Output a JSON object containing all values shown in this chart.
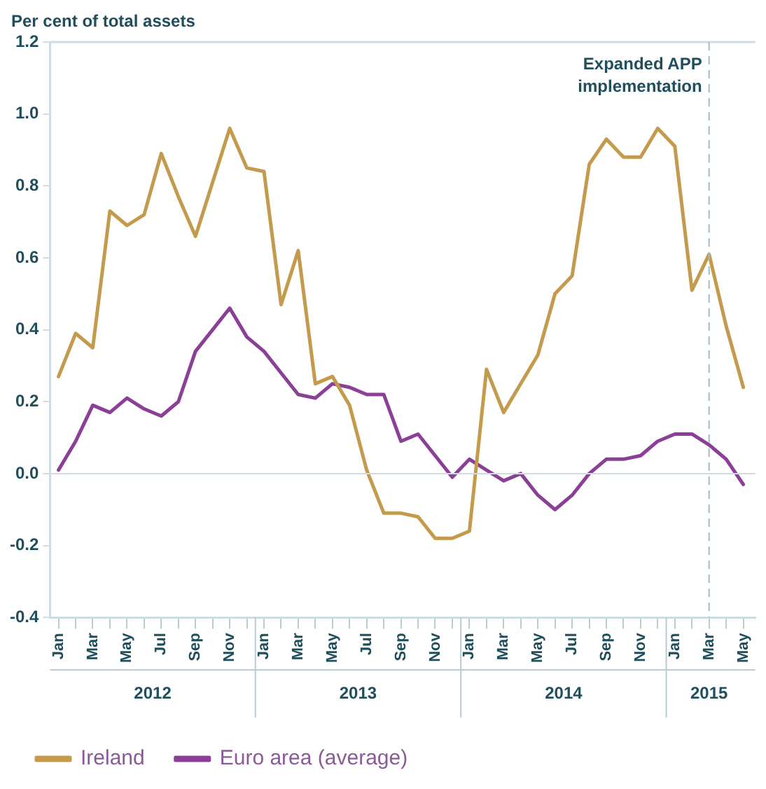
{
  "chart_data": {
    "type": "line",
    "ylabel": "Per cent of total assets",
    "x": [
      "2012-01",
      "2012-02",
      "2012-03",
      "2012-04",
      "2012-05",
      "2012-06",
      "2012-07",
      "2012-08",
      "2012-09",
      "2012-10",
      "2012-11",
      "2012-12",
      "2013-01",
      "2013-02",
      "2013-03",
      "2013-04",
      "2013-05",
      "2013-06",
      "2013-07",
      "2013-08",
      "2013-09",
      "2013-10",
      "2013-11",
      "2013-12",
      "2014-01",
      "2014-02",
      "2014-03",
      "2014-04",
      "2014-05",
      "2014-06",
      "2014-07",
      "2014-08",
      "2014-09",
      "2014-10",
      "2014-11",
      "2014-12",
      "2015-01",
      "2015-02",
      "2015-03",
      "2015-04",
      "2015-05"
    ],
    "series": [
      {
        "name": "Ireland",
        "color": "#c49a4c",
        "values": [
          0.27,
          0.39,
          0.35,
          0.73,
          0.69,
          0.72,
          0.89,
          0.77,
          0.66,
          0.81,
          0.96,
          0.85,
          0.84,
          0.47,
          0.62,
          0.25,
          0.27,
          0.19,
          0.01,
          -0.11,
          -0.11,
          -0.12,
          -0.18,
          -0.18,
          -0.16,
          0.29,
          0.17,
          0.25,
          0.33,
          0.5,
          0.55,
          0.86,
          0.93,
          0.88,
          0.88,
          0.96,
          0.91,
          0.51,
          0.61,
          0.41,
          0.24
        ]
      },
      {
        "name": "Euro area (average)",
        "color": "#8b3f96",
        "values": [
          0.01,
          0.09,
          0.19,
          0.17,
          0.21,
          0.18,
          0.16,
          0.2,
          0.34,
          0.4,
          0.46,
          0.38,
          0.34,
          0.28,
          0.22,
          0.21,
          0.25,
          0.24,
          0.22,
          0.22,
          0.09,
          0.11,
          0.05,
          -0.01,
          0.04,
          0.01,
          -0.02,
          0.0,
          -0.06,
          -0.1,
          -0.06,
          0.0,
          0.04,
          0.04,
          0.05,
          0.09,
          0.11,
          0.11,
          0.08,
          0.04,
          -0.03
        ]
      }
    ],
    "xlim": [
      "2011-12-16",
      "2015-05-22"
    ],
    "xticks": [
      {
        "value": "2012-01",
        "label": "Jan"
      },
      {
        "value": "2012-02",
        "label": null
      },
      {
        "value": "2012-03",
        "label": "Mar"
      },
      {
        "value": "2012-04",
        "label": null
      },
      {
        "value": "2012-05",
        "label": "May"
      },
      {
        "value": "2012-06",
        "label": null
      },
      {
        "value": "2012-07",
        "label": "Jul"
      },
      {
        "value": "2012-08",
        "label": null
      },
      {
        "value": "2012-09",
        "label": "Sep"
      },
      {
        "value": "2012-10",
        "label": null
      },
      {
        "value": "2012-11",
        "label": "Nov"
      },
      {
        "value": "2012-12",
        "label": null
      },
      {
        "value": "2013-01",
        "label": "Jan"
      },
      {
        "value": "2013-02",
        "label": null
      },
      {
        "value": "2013-03",
        "label": "Mar"
      },
      {
        "value": "2013-04",
        "label": null
      },
      {
        "value": "2013-05",
        "label": "May"
      },
      {
        "value": "2013-06",
        "label": null
      },
      {
        "value": "2013-07",
        "label": "Jul"
      },
      {
        "value": "2013-08",
        "label": null
      },
      {
        "value": "2013-09",
        "label": "Sep"
      },
      {
        "value": "2013-10",
        "label": null
      },
      {
        "value": "2013-11",
        "label": "Nov"
      },
      {
        "value": "2013-12",
        "label": null
      },
      {
        "value": "2014-01",
        "label": "Jan"
      },
      {
        "value": "2014-02",
        "label": null
      },
      {
        "value": "2014-03",
        "label": "Mar"
      },
      {
        "value": "2014-04",
        "label": null
      },
      {
        "value": "2014-05",
        "label": "May"
      },
      {
        "value": "2014-06",
        "label": null
      },
      {
        "value": "2014-07",
        "label": "Jul"
      },
      {
        "value": "2014-08",
        "label": null
      },
      {
        "value": "2014-09",
        "label": "Sep"
      },
      {
        "value": "2014-10",
        "label": null
      },
      {
        "value": "2014-11",
        "label": "Nov"
      },
      {
        "value": "2014-12",
        "label": null
      },
      {
        "value": "2015-01",
        "label": "Jan"
      },
      {
        "value": "2015-02",
        "label": null
      },
      {
        "value": "2015-03",
        "label": "Mar"
      },
      {
        "value": "2015-04",
        "label": null
      },
      {
        "value": "2015-05",
        "label": "May"
      }
    ],
    "ylim": [
      -0.4,
      1.2
    ],
    "yticks": [
      {
        "value": -0.4,
        "label": "-0.4"
      },
      {
        "value": -0.2,
        "label": "-0.2"
      },
      {
        "value": 0,
        "label": "0.0"
      },
      {
        "value": 0.2,
        "label": "0.2"
      },
      {
        "value": 0.4,
        "label": "0.4"
      },
      {
        "value": 0.6,
        "label": "0.6"
      },
      {
        "value": 0.8,
        "label": "0.8"
      },
      {
        "value": 1.0,
        "label": "1.0"
      },
      {
        "value": 1.2,
        "label": "1.2"
      }
    ],
    "annotations": [
      "2012",
      "2013",
      "2014",
      "2015"
    ],
    "ref_lines": [
      {
        "axis": "y",
        "value": 0,
        "color": "#cfdde3",
        "line_style": "solid"
      },
      {
        "axis": "x",
        "value": "2015-03",
        "label": "Expanded APP implementation",
        "color": "#9fbccb",
        "line_style": "dashed"
      }
    ],
    "grid": false,
    "legend": "bottom left",
    "marker": "none",
    "line_style": "solid"
  }
}
